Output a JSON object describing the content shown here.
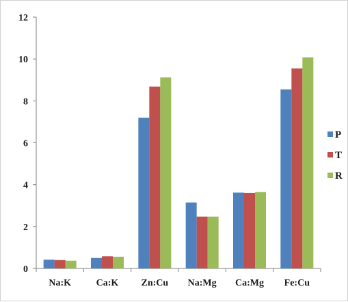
{
  "chart_data": {
    "type": "bar",
    "title": "",
    "xlabel": "",
    "ylabel": "",
    "categories": [
      "Na:K",
      "Ca:K",
      "Zn:Cu",
      "Na:Mg",
      "Ca:Mg",
      "Fe:Cu"
    ],
    "series": [
      {
        "name": "P",
        "color": "#4f81bd",
        "values": [
          0.42,
          0.5,
          7.2,
          3.15,
          3.62,
          8.55
        ]
      },
      {
        "name": "T",
        "color": "#c0504d",
        "values": [
          0.4,
          0.58,
          8.68,
          2.47,
          3.6,
          9.55
        ]
      },
      {
        "name": "R",
        "color": "#9bbb59",
        "values": [
          0.37,
          0.56,
          9.12,
          2.47,
          3.65,
          10.08
        ]
      }
    ],
    "ylim": [
      0,
      12
    ],
    "yticks": [
      "0",
      "2",
      "4",
      "6",
      "8",
      "10",
      "12"
    ],
    "grid": false,
    "legend_position": "right"
  }
}
